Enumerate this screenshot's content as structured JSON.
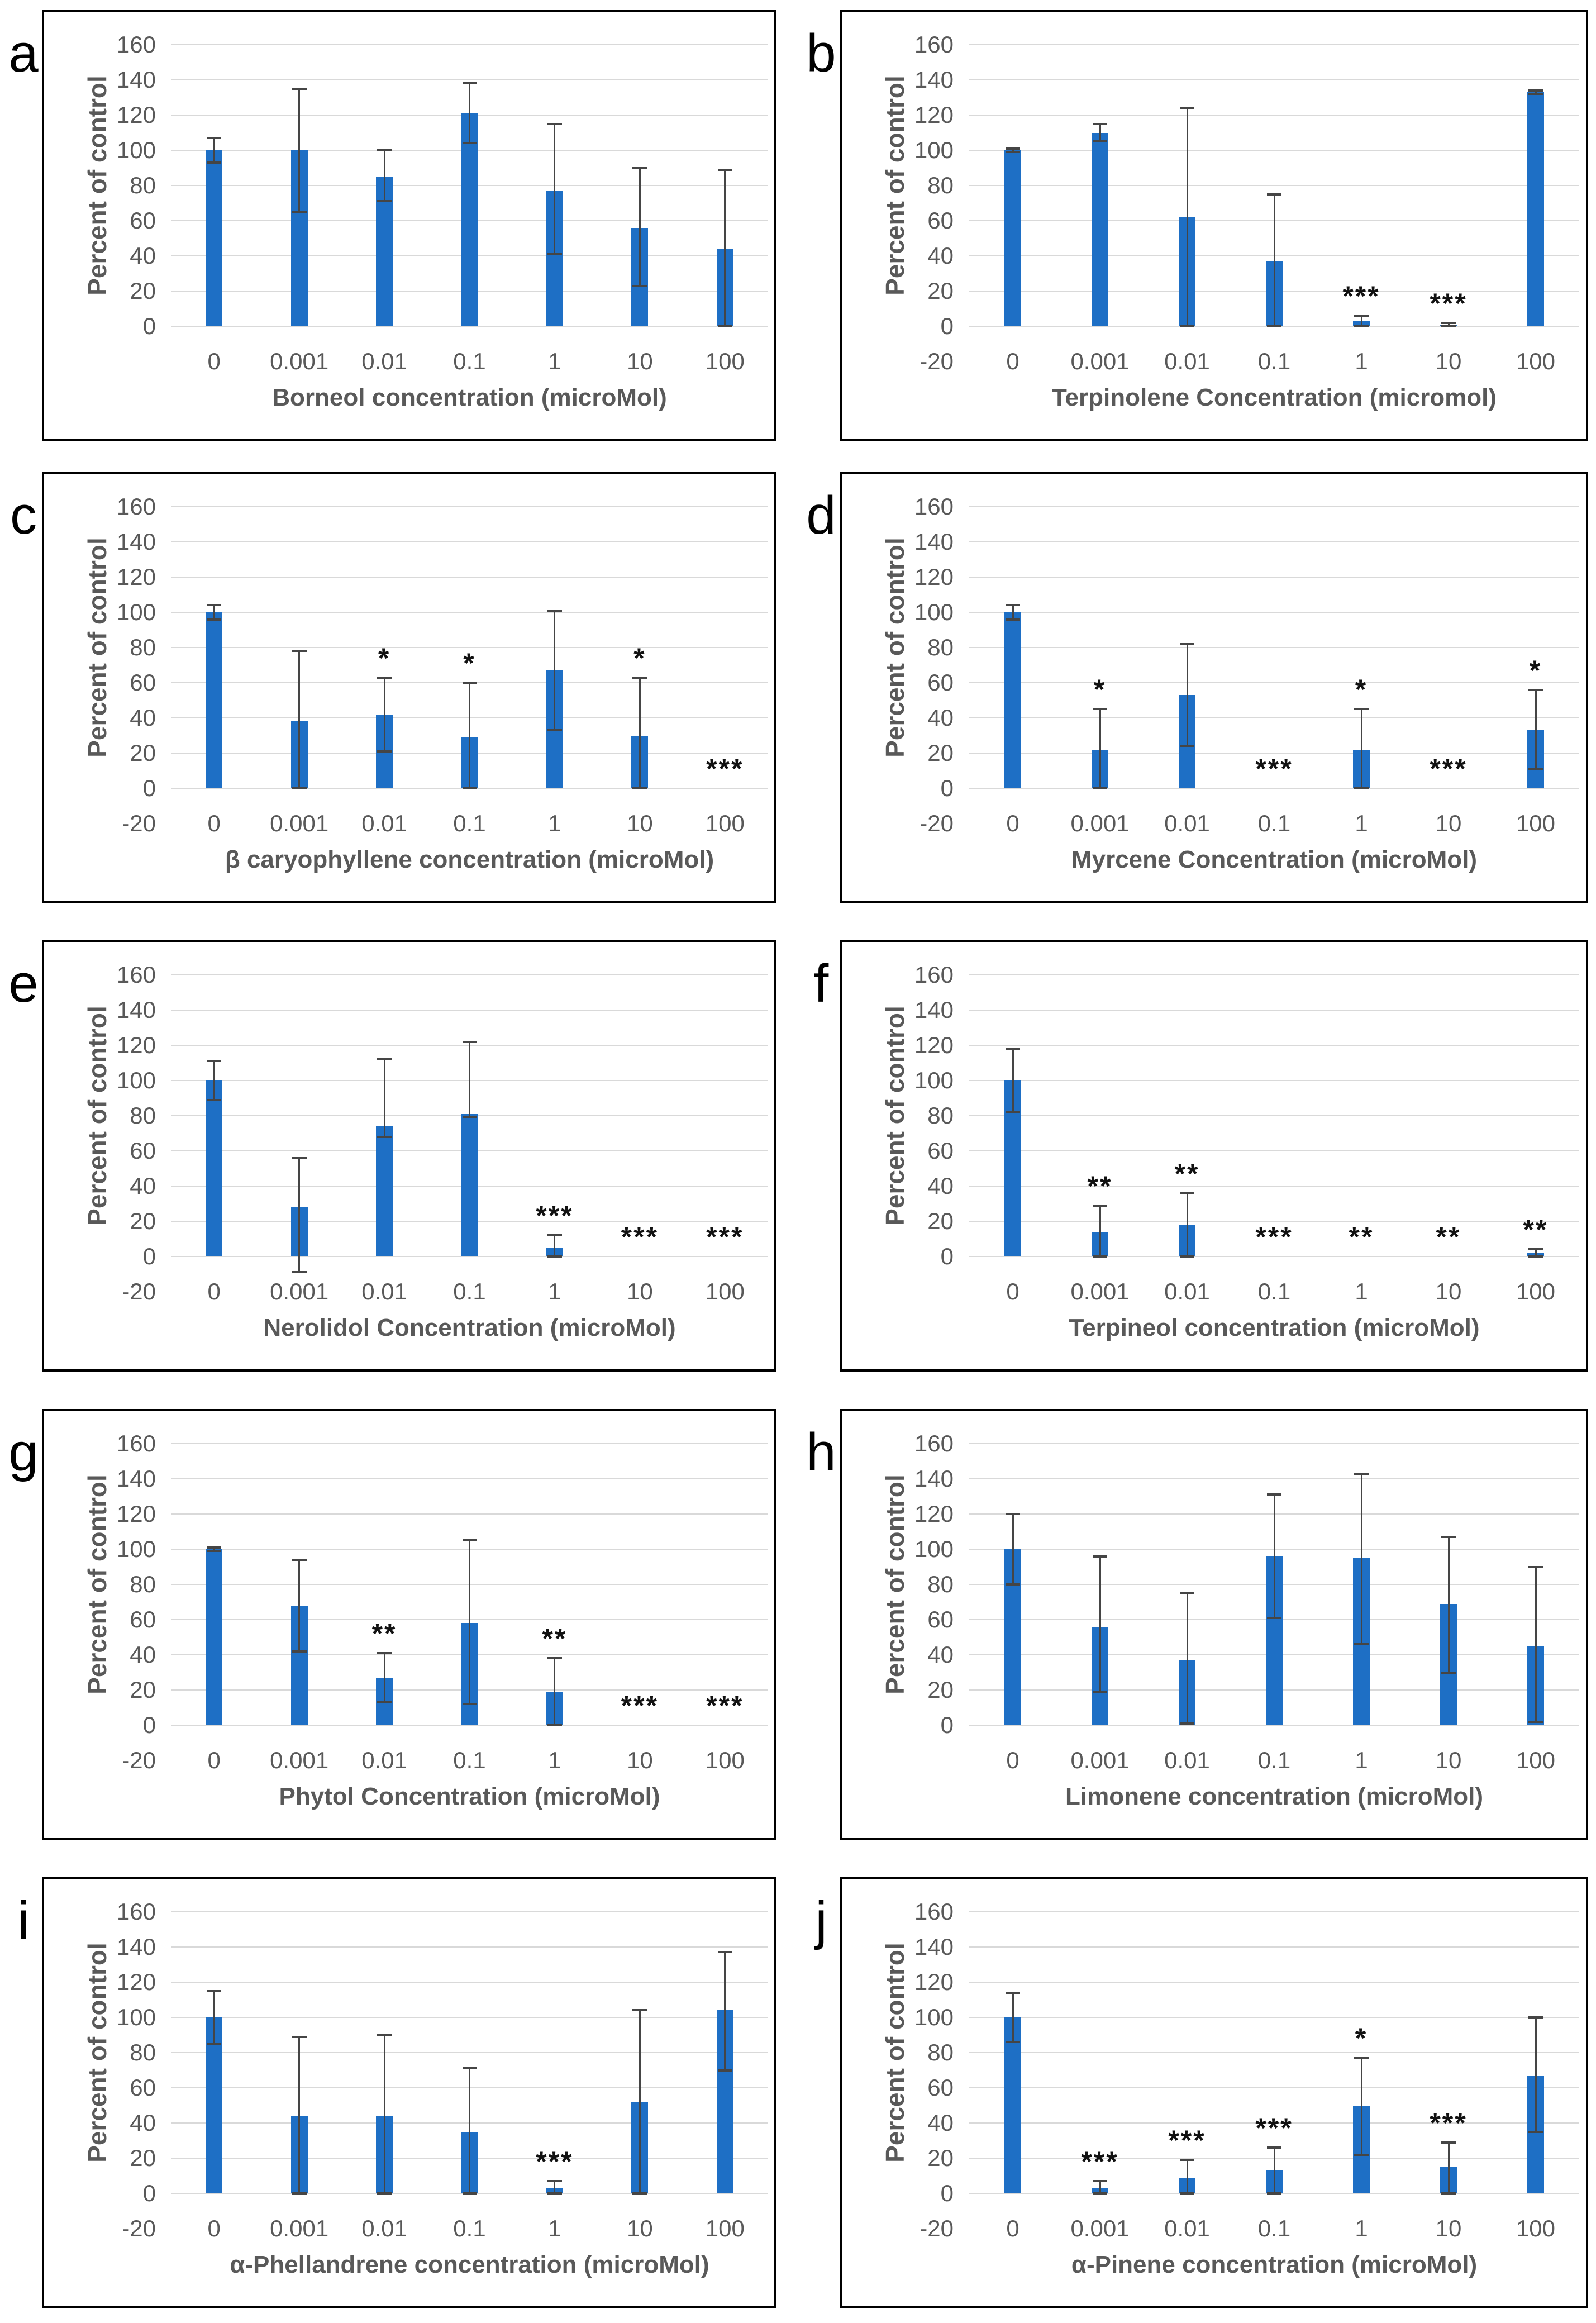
{
  "style": {
    "bar_color": "#1e6fc5",
    "error_bar_color": "#454545",
    "gridline_color": "#d9d9d9",
    "tick_label_color": "#595959",
    "axis_title_color": "#595959",
    "panel_letter_color": "#000000"
  },
  "chart_data": [
    {
      "letter": "a",
      "type": "bar",
      "xlabel": "Borneol concentration (microMol)",
      "ylabel": "Percent of control",
      "categories": [
        "0",
        "0.001",
        "0.01",
        "0.1",
        "1",
        "10",
        "100"
      ],
      "values": [
        100,
        100,
        85,
        121,
        77,
        56,
        44
      ],
      "err_up": [
        7,
        35,
        15,
        17,
        38,
        34,
        45
      ],
      "err_down": [
        7,
        35,
        14,
        17,
        36,
        33,
        44
      ],
      "sig": [
        "",
        "",
        "",
        "",
        "",
        "",
        ""
      ],
      "ylim": [
        -20,
        160
      ],
      "ytick_step": 20,
      "grid": true,
      "show_neg20_label": false
    },
    {
      "letter": "b",
      "type": "bar",
      "xlabel": "Terpinolene Concentration (micromol)",
      "ylabel": "Percent of control",
      "categories": [
        "0",
        "0.001",
        "0.01",
        "0.1",
        "1",
        "10",
        "100"
      ],
      "values": [
        100,
        110,
        62,
        37,
        3,
        1,
        133
      ],
      "err_up": [
        1,
        5,
        62,
        38,
        3,
        1,
        1
      ],
      "err_down": [
        1,
        5,
        62,
        37,
        3,
        1,
        1
      ],
      "sig": [
        "",
        "",
        "",
        "",
        "***",
        "***",
        ""
      ],
      "ylim": [
        -20,
        160
      ],
      "ytick_step": 20,
      "grid": true,
      "show_neg20_label": true
    },
    {
      "letter": "c",
      "type": "bar",
      "xlabel": "β caryophyllene concentration (microMol)",
      "ylabel": "Percent of control",
      "categories": [
        "0",
        "0.001",
        "0.01",
        "0.1",
        "1",
        "10",
        "100"
      ],
      "values": [
        100,
        38,
        42,
        29,
        67,
        30,
        0
      ],
      "err_up": [
        4,
        40,
        21,
        31,
        34,
        33,
        0
      ],
      "err_down": [
        4,
        38,
        21,
        29,
        34,
        30,
        0
      ],
      "sig": [
        "",
        "",
        "*",
        "*",
        "",
        "*",
        "***"
      ],
      "ylim": [
        -20,
        160
      ],
      "ytick_step": 20,
      "grid": true,
      "show_neg20_label": true
    },
    {
      "letter": "d",
      "type": "bar",
      "xlabel": "Myrcene Concentration (microMol)",
      "ylabel": "Percent of control",
      "categories": [
        "0",
        "0.001",
        "0.01",
        "0.1",
        "1",
        "10",
        "100"
      ],
      "values": [
        100,
        22,
        53,
        0,
        22,
        0,
        33
      ],
      "err_up": [
        4,
        23,
        29,
        0,
        23,
        0,
        23
      ],
      "err_down": [
        4,
        22,
        29,
        0,
        22,
        0,
        22
      ],
      "sig": [
        "",
        "*",
        "",
        "***",
        "*",
        "***",
        "*"
      ],
      "ylim": [
        -20,
        160
      ],
      "ytick_step": 20,
      "grid": true,
      "show_neg20_label": true
    },
    {
      "letter": "e",
      "type": "bar",
      "xlabel": "Nerolidol Concentration (microMol)",
      "ylabel": "Percent of control",
      "categories": [
        "0",
        "0.001",
        "0.01",
        "0.1",
        "1",
        "10",
        "100"
      ],
      "values": [
        100,
        28,
        74,
        81,
        5,
        0,
        0
      ],
      "err_up": [
        11,
        28,
        38,
        41,
        7,
        0,
        0
      ],
      "err_down": [
        11,
        37,
        6,
        2,
        5,
        0,
        0
      ],
      "sig": [
        "",
        "",
        "",
        "",
        "***",
        "***",
        "***"
      ],
      "ylim": [
        -20,
        160
      ],
      "ytick_step": 20,
      "grid": true,
      "show_neg20_label": true
    },
    {
      "letter": "f",
      "type": "bar",
      "xlabel": "Terpineol concentration (microMol)",
      "ylabel": "Percent of control",
      "categories": [
        "0",
        "0.001",
        "0.01",
        "0.1",
        "1",
        "10",
        "100"
      ],
      "values": [
        100,
        14,
        18,
        0,
        0,
        0,
        2
      ],
      "err_up": [
        18,
        15,
        18,
        0,
        0,
        0,
        2
      ],
      "err_down": [
        18,
        14,
        18,
        0,
        0,
        0,
        2
      ],
      "sig": [
        "",
        "**",
        "**",
        "***",
        "**",
        "**",
        "**"
      ],
      "ylim": [
        -20,
        160
      ],
      "ytick_step": 20,
      "grid": true,
      "show_neg20_label": false
    },
    {
      "letter": "g",
      "type": "bar",
      "xlabel": "Phytol Concentration (microMol)",
      "ylabel": "Percent of control",
      "categories": [
        "0",
        "0.001",
        "0.01",
        "0.1",
        "1",
        "10",
        "100"
      ],
      "values": [
        100,
        68,
        27,
        58,
        19,
        0,
        0
      ],
      "err_up": [
        1,
        26,
        14,
        47,
        19,
        0,
        0
      ],
      "err_down": [
        1,
        26,
        14,
        46,
        19,
        0,
        0
      ],
      "sig": [
        "",
        "",
        "**",
        "",
        "**",
        "***",
        "***"
      ],
      "ylim": [
        -20,
        160
      ],
      "ytick_step": 20,
      "grid": true,
      "show_neg20_label": true
    },
    {
      "letter": "h",
      "type": "bar",
      "xlabel": "Limonene concentration (microMol)",
      "ylabel": "Percent of control",
      "categories": [
        "0",
        "0.001",
        "0.01",
        "0.1",
        "1",
        "10",
        "100"
      ],
      "values": [
        100,
        56,
        37,
        96,
        95,
        69,
        45
      ],
      "err_up": [
        20,
        40,
        38,
        35,
        48,
        38,
        45
      ],
      "err_down": [
        20,
        37,
        36,
        35,
        49,
        39,
        43
      ],
      "sig": [
        "",
        "",
        "",
        "",
        "",
        "",
        ""
      ],
      "ylim": [
        -20,
        160
      ],
      "ytick_step": 20,
      "grid": true,
      "show_neg20_label": false
    },
    {
      "letter": "i",
      "type": "bar",
      "xlabel": "α-Phellandrene concentration (microMol)",
      "ylabel": "Percent of control",
      "categories": [
        "0",
        "0.001",
        "0.01",
        "0.1",
        "1",
        "10",
        "100"
      ],
      "values": [
        100,
        44,
        44,
        35,
        3,
        52,
        104
      ],
      "err_up": [
        15,
        45,
        46,
        36,
        4,
        52,
        33
      ],
      "err_down": [
        15,
        44,
        44,
        35,
        3,
        52,
        34
      ],
      "sig": [
        "",
        "",
        "",
        "",
        "***",
        "",
        ""
      ],
      "ylim": [
        -20,
        160
      ],
      "ytick_step": 20,
      "grid": true,
      "show_neg20_label": true
    },
    {
      "letter": "j",
      "type": "bar",
      "xlabel": "α-Pinene concentration (microMol)",
      "ylabel": "Percent of control",
      "categories": [
        "0",
        "0.001",
        "0.01",
        "0.1",
        "1",
        "10",
        "100"
      ],
      "values": [
        100,
        3,
        9,
        13,
        50,
        15,
        67
      ],
      "err_up": [
        14,
        4,
        10,
        13,
        27,
        14,
        33
      ],
      "err_down": [
        14,
        3,
        9,
        13,
        28,
        15,
        32
      ],
      "sig": [
        "",
        "***",
        "***",
        "***",
        "*",
        "***",
        ""
      ],
      "ylim": [
        -20,
        160
      ],
      "ytick_step": 20,
      "grid": true,
      "show_neg20_label": true
    }
  ]
}
